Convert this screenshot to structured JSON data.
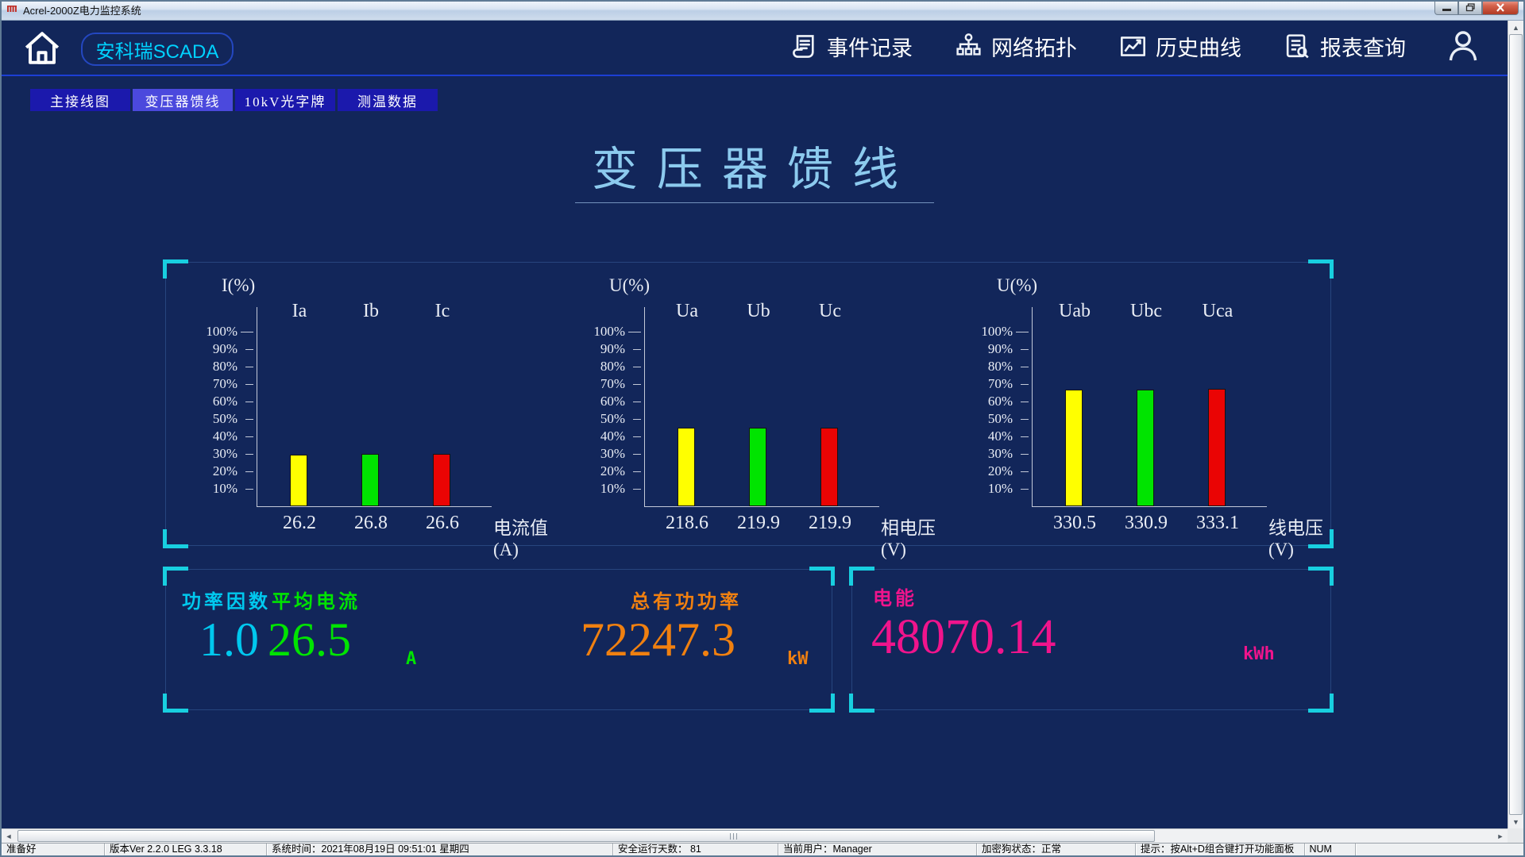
{
  "titlebar": {
    "title": "Acrel-2000Z电力监控系统",
    "app_icon": "app-icon",
    "buttons": [
      {
        "name": "minimize-button",
        "icon": "minimize-icon"
      },
      {
        "name": "restore-button",
        "icon": "restore-icon"
      },
      {
        "name": "close-button",
        "icon": "close-icon"
      }
    ]
  },
  "nav": {
    "home_icon": "home-icon",
    "brand": "安科瑞SCADA",
    "items": [
      {
        "label": "事件记录",
        "icon": "event-log-icon"
      },
      {
        "label": "网络拓扑",
        "icon": "network-topology-icon"
      },
      {
        "label": "历史曲线",
        "icon": "history-curve-icon"
      },
      {
        "label": "报表查询",
        "icon": "report-query-icon"
      }
    ],
    "user_icon": "user-icon"
  },
  "tabs": [
    {
      "label": "主接线图",
      "active": false
    },
    {
      "label": "变压器馈线",
      "active": true
    },
    {
      "label": "10kV光字牌",
      "active": false
    },
    {
      "label": "测温数据",
      "active": false
    }
  ],
  "page": {
    "title": "变压器馈线"
  },
  "chart_data": [
    {
      "type": "bar",
      "title": "I(%)",
      "categories": [
        "Ia",
        "Ib",
        "Ic"
      ],
      "values": [
        26.2,
        26.8,
        26.6
      ],
      "bar_heights_percent": [
        29.5,
        30.1,
        29.9
      ],
      "bar_colors": [
        "#ffff00",
        "#00e400",
        "#ea0404"
      ],
      "xlabel": "电流值(A)",
      "yticks": [
        "100%",
        "90%",
        "80%",
        "70%",
        "60%",
        "50%",
        "40%",
        "30%",
        "20%",
        "10%"
      ],
      "ylim": [
        0,
        100
      ],
      "grid": false,
      "legend": false
    },
    {
      "type": "bar",
      "title": "U(%)",
      "categories": [
        "Ua",
        "Ub",
        "Uc"
      ],
      "values": [
        218.6,
        219.9,
        219.9
      ],
      "bar_heights_percent": [
        44.8,
        45.2,
        45.2
      ],
      "bar_colors": [
        "#ffff00",
        "#00e400",
        "#ea0404"
      ],
      "xlabel": "相电压(V)",
      "yticks": [
        "100%",
        "90%",
        "80%",
        "70%",
        "60%",
        "50%",
        "40%",
        "30%",
        "20%",
        "10%"
      ],
      "ylim": [
        0,
        100
      ],
      "grid": false,
      "legend": false
    },
    {
      "type": "bar",
      "title": "U(%)",
      "categories": [
        "Uab",
        "Ubc",
        "Uca"
      ],
      "values": [
        330.5,
        330.9,
        333.1
      ],
      "bar_heights_percent": [
        66.6,
        66.9,
        67.3
      ],
      "bar_colors": [
        "#ffff00",
        "#00e400",
        "#ea0404"
      ],
      "xlabel": "线电压(V)",
      "yticks": [
        "100%",
        "90%",
        "80%",
        "70%",
        "60%",
        "50%",
        "40%",
        "30%",
        "20%",
        "10%"
      ],
      "ylim": [
        0,
        100
      ],
      "grid": false,
      "legend": false
    }
  ],
  "metrics": {
    "power_factor": {
      "label": "功率因数",
      "value": "1.0",
      "unit": "",
      "color": "#00c8ee"
    },
    "avg_current": {
      "label": "平均电流",
      "value": "26.5",
      "unit": "A",
      "color": "#00e400"
    },
    "total_active_power": {
      "label": "总有功功率",
      "value": "72247.3",
      "unit": "kW",
      "color": "#f08010"
    },
    "energy": {
      "label": "电能",
      "value": "48070.14",
      "unit": "kWh",
      "color": "#f0148c"
    }
  },
  "statusbar": {
    "cells": [
      "准备好",
      "版本Ver 2.2.0 LEG 3.3.18",
      "系统时间：2021年08月19日  09:51:01  星期四",
      "安全运行天数：  81",
      "当前用户：Manager",
      "加密狗状态：正常",
      "提示：按Alt+D组合键打开功能面板",
      "NUM",
      ""
    ]
  },
  "colors": {
    "background": "#12265a",
    "accent_cyan": "#18cfe0",
    "tab_bg": "#1b19ac",
    "tab_active_bg": "#4b49dd",
    "brand_text": "#00d2ff",
    "page_title": "#8ccaee",
    "bar_yellow": "#ffff00",
    "bar_green": "#00e400",
    "bar_red": "#ea0404"
  }
}
